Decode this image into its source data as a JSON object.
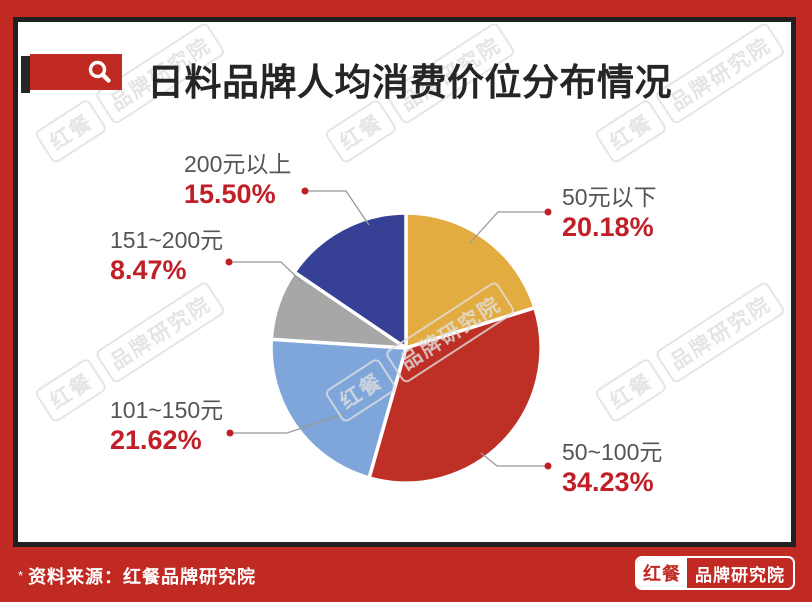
{
  "colors": {
    "brand_red": "#C02A23",
    "panel_border": "#202020",
    "percent_red": "#C01F28",
    "label_gray": "#555555",
    "leader_gray": "#999999",
    "watermark_gray": "#DEDEDE",
    "title_text": "#252525"
  },
  "header": {
    "title": "日料品牌人均消费价位分布情况",
    "icon": "magnifier-icon"
  },
  "watermark": {
    "brand": "红餐",
    "suffix": "品牌研究院"
  },
  "chart_data": {
    "type": "pie",
    "title": "日料品牌人均消费价位分布情况",
    "start_angle_deg": 0,
    "direction": "clockwise",
    "legend": "none (callout labels with leader lines)",
    "slices": [
      {
        "label": "50元以下",
        "value": 20.18,
        "pct": "20.18%",
        "color": "#E3AC40"
      },
      {
        "label": "50~100元",
        "value": 34.23,
        "pct": "34.23%",
        "color": "#BE3026"
      },
      {
        "label": "101~150元",
        "value": 21.62,
        "pct": "21.62%",
        "color": "#7FA6DB"
      },
      {
        "label": "151~200元",
        "value": 8.47,
        "pct": "8.47%",
        "color": "#A7A7A7"
      },
      {
        "label": "200元以上",
        "value": 15.5,
        "pct": "15.50%",
        "color": "#364094"
      }
    ]
  },
  "footer": {
    "asterisk": "*",
    "source": "资料来源：红餐品牌研究院",
    "logo": {
      "left": "红餐",
      "right": "品牌研究院"
    }
  }
}
